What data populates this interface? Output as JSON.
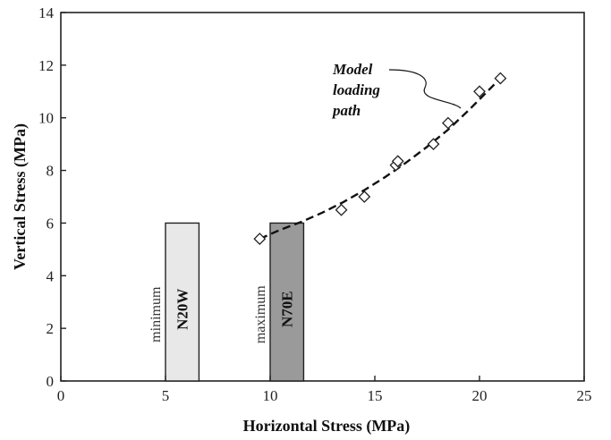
{
  "chart_data": {
    "type": "scatter",
    "xlabel": "Horizontal Stress (MPa)",
    "ylabel": "Vertical Stress (MPa)",
    "xlim": [
      0,
      25
    ],
    "ylim": [
      0,
      14
    ],
    "x_ticks": [
      "0",
      "5",
      "10",
      "15",
      "20",
      "25"
    ],
    "y_ticks": [
      "0",
      "2",
      "4",
      "6",
      "8",
      "10",
      "12",
      "14"
    ],
    "grid": false,
    "ranges": [
      {
        "label": "N20W",
        "descriptor": "minimum",
        "x_start": 5.0,
        "x_end": 6.6,
        "y_start": 0,
        "y_end": 6,
        "color": "#e8e8e8"
      },
      {
        "label": "N70E",
        "descriptor": "maximum",
        "x_start": 10.0,
        "x_end": 11.6,
        "y_start": 0,
        "y_end": 6,
        "color": "#9a9a9a"
      }
    ],
    "series": [
      {
        "marker": "diamond",
        "points": [
          {
            "x": 9.5,
            "y": 5.4
          },
          {
            "x": 13.4,
            "y": 6.5
          },
          {
            "x": 14.5,
            "y": 7.0
          },
          {
            "x": 16.0,
            "y": 8.2
          },
          {
            "x": 16.1,
            "y": 8.35
          },
          {
            "x": 17.8,
            "y": 9.0
          },
          {
            "x": 18.5,
            "y": 9.8
          },
          {
            "x": 20.0,
            "y": 11.0
          },
          {
            "x": 21.0,
            "y": 11.5
          }
        ]
      }
    ],
    "fit_curve": {
      "style": "dashed",
      "points": [
        {
          "x": 9.5,
          "y": 5.4
        },
        {
          "x": 10.5,
          "y": 5.75
        },
        {
          "x": 11.5,
          "y": 6.05
        },
        {
          "x": 12.5,
          "y": 6.4
        },
        {
          "x": 13.5,
          "y": 6.8
        },
        {
          "x": 14.5,
          "y": 7.25
        },
        {
          "x": 15.5,
          "y": 7.75
        },
        {
          "x": 16.5,
          "y": 8.3
        },
        {
          "x": 17.5,
          "y": 8.9
        },
        {
          "x": 18.5,
          "y": 9.55
        },
        {
          "x": 19.5,
          "y": 10.3
        },
        {
          "x": 20.5,
          "y": 11.1
        },
        {
          "x": 21.0,
          "y": 11.5
        }
      ]
    },
    "annotation": {
      "lines": [
        "Model",
        "loading",
        "path"
      ],
      "points_to": {
        "x": 19.0,
        "y": 10.25
      }
    }
  }
}
